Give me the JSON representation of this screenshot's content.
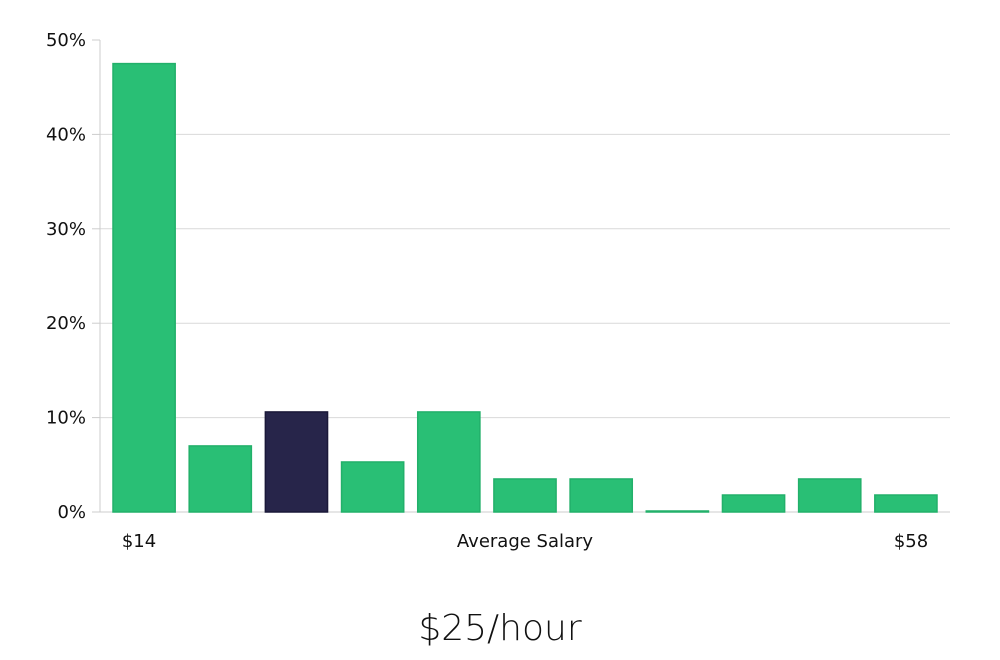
{
  "headline": "$25/hour",
  "colors": {
    "bar": "#29bf75",
    "highlight": "#27254a",
    "grid": "#d9d9d9"
  },
  "chart_data": {
    "type": "bar",
    "title": "",
    "xlabel": "Average Salary",
    "ylabel": "",
    "x_left_label": "$14",
    "x_right_label": "$58",
    "ylim": [
      0,
      50
    ],
    "yticks": [
      0,
      10,
      20,
      30,
      40,
      50
    ],
    "ytick_labels": [
      "0%",
      "10%",
      "20%",
      "30%",
      "40%",
      "50%"
    ],
    "grid": true,
    "highlight_index": 2,
    "values": [
      47.5,
      7.0,
      10.6,
      5.3,
      10.6,
      3.5,
      3.5,
      0.1,
      1.8,
      3.5,
      1.8
    ]
  }
}
